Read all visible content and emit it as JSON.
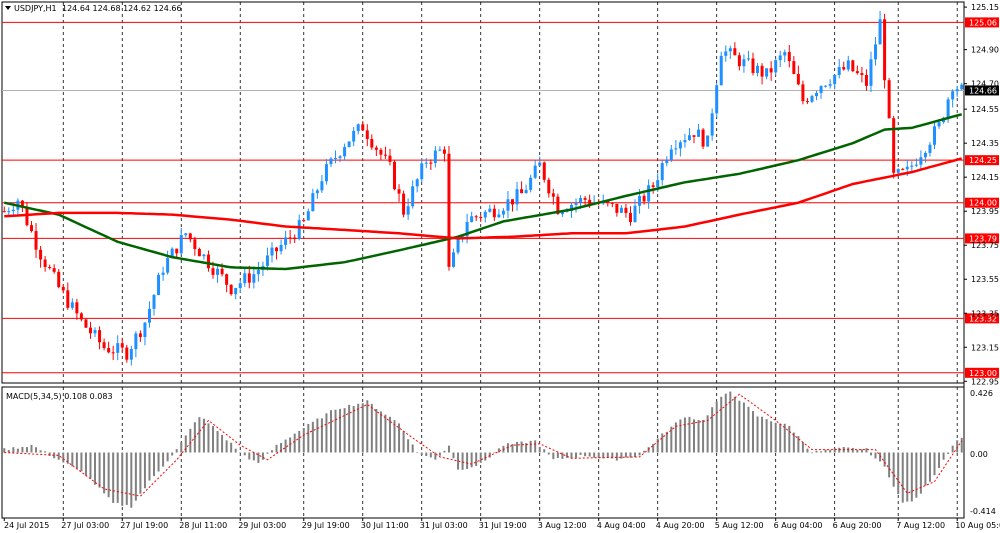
{
  "window": {
    "symbol_label": "USDJPY,H1",
    "ohlc_label": "124.64 124.68 124.62 124.66"
  },
  "macd_panel": {
    "label": "MACD(5,34,5) 0.108 0.083",
    "ticks": [
      "0.426",
      "0.00",
      "-0.414"
    ]
  },
  "colors": {
    "bull_candle": "#1e90ff",
    "bear_candle": "#ff0000",
    "ma_fast": "#006400",
    "ma_slow": "#ff0000",
    "level_line": "#ff0000",
    "macd_hist": "#808080",
    "macd_signal": "#ff0000"
  },
  "chart_data": [
    {
      "type": "candlestick",
      "series_label": "USDJPY,H1",
      "x_tick_labels": [
        "24 Jul 2015",
        "27 Jul 03:00",
        "27 Jul 19:00",
        "28 Jul 11:00",
        "29 Jul 03:00",
        "29 Jul 19:00",
        "30 Jul 11:00",
        "31 Jul 03:00",
        "31 Jul 19:00",
        "3 Aug 12:00",
        "4 Aug 04:00",
        "4 Aug 20:00",
        "5 Aug 12:00",
        "6 Aug 04:00",
        "6 Aug 20:00",
        "7 Aug 12:00",
        "10 Aug 05:00"
      ],
      "y_tick_labels": [
        "125.15",
        "124.90",
        "124.70",
        "124.55",
        "124.35",
        "124.15",
        "123.95",
        "123.75",
        "123.55",
        "123.35",
        "123.15",
        "122.95"
      ],
      "ylim": [
        122.94,
        125.18
      ],
      "grid": true,
      "current_price": 124.66,
      "horizontal_levels": [
        125.06,
        124.25,
        124.0,
        123.79,
        123.32,
        123.0
      ],
      "anchors": [
        {
          "index": 0,
          "price": 123.95
        },
        {
          "index": 3,
          "price": 124.02
        },
        {
          "index": 8,
          "price": 123.7
        },
        {
          "index": 12,
          "price": 123.5
        },
        {
          "index": 17,
          "price": 123.3
        },
        {
          "index": 22,
          "price": 123.15
        },
        {
          "index": 27,
          "price": 123.12
        },
        {
          "index": 31,
          "price": 123.3
        },
        {
          "index": 35,
          "price": 123.62
        },
        {
          "index": 40,
          "price": 123.82
        },
        {
          "index": 45,
          "price": 123.65
        },
        {
          "index": 50,
          "price": 123.5
        },
        {
          "index": 55,
          "price": 123.58
        },
        {
          "index": 60,
          "price": 123.72
        },
        {
          "index": 66,
          "price": 123.88
        },
        {
          "index": 70,
          "price": 124.15
        },
        {
          "index": 75,
          "price": 124.35
        },
        {
          "index": 79,
          "price": 124.45
        },
        {
          "index": 85,
          "price": 124.2
        },
        {
          "index": 88,
          "price": 123.95
        },
        {
          "index": 93,
          "price": 124.25
        },
        {
          "index": 97,
          "price": 124.32
        },
        {
          "index": 98,
          "price": 123.6
        },
        {
          "index": 102,
          "price": 123.9
        },
        {
          "index": 108,
          "price": 123.96
        },
        {
          "index": 114,
          "price": 124.05
        },
        {
          "index": 118,
          "price": 124.22
        },
        {
          "index": 122,
          "price": 123.97
        },
        {
          "index": 128,
          "price": 124.02
        },
        {
          "index": 133,
          "price": 123.98
        },
        {
          "index": 138,
          "price": 123.93
        },
        {
          "index": 143,
          "price": 124.1
        },
        {
          "index": 147,
          "price": 124.35
        },
        {
          "index": 152,
          "price": 124.42
        },
        {
          "index": 155,
          "price": 124.35
        },
        {
          "index": 156,
          "price": 124.55
        },
        {
          "index": 158,
          "price": 124.9
        },
        {
          "index": 163,
          "price": 124.82
        },
        {
          "index": 168,
          "price": 124.75
        },
        {
          "index": 172,
          "price": 124.88
        },
        {
          "index": 176,
          "price": 124.6
        },
        {
          "index": 180,
          "price": 124.7
        },
        {
          "index": 186,
          "price": 124.8
        },
        {
          "index": 190,
          "price": 124.7
        },
        {
          "index": 193,
          "price": 125.06
        },
        {
          "index": 196,
          "price": 124.15
        },
        {
          "index": 199,
          "price": 124.18
        },
        {
          "index": 202,
          "price": 124.3
        },
        {
          "index": 206,
          "price": 124.45
        },
        {
          "index": 209,
          "price": 124.7
        },
        {
          "index": 211,
          "price": 124.66
        }
      ],
      "moving_averages": [
        {
          "color_key": "ma_fast",
          "points": [
            {
              "index": 0,
              "price": 124.0
            },
            {
              "index": 12,
              "price": 123.93
            },
            {
              "index": 25,
              "price": 123.77
            },
            {
              "index": 37,
              "price": 123.68
            },
            {
              "index": 50,
              "price": 123.62
            },
            {
              "index": 62,
              "price": 123.61
            },
            {
              "index": 75,
              "price": 123.65
            },
            {
              "index": 87,
              "price": 123.72
            },
            {
              "index": 100,
              "price": 123.8
            },
            {
              "index": 110,
              "price": 123.89
            },
            {
              "index": 125,
              "price": 123.96
            },
            {
              "index": 137,
              "price": 124.04
            },
            {
              "index": 150,
              "price": 124.12
            },
            {
              "index": 162,
              "price": 124.17
            },
            {
              "index": 175,
              "price": 124.25
            },
            {
              "index": 187,
              "price": 124.35
            },
            {
              "index": 194,
              "price": 124.43
            },
            {
              "index": 200,
              "price": 124.44
            },
            {
              "index": 211,
              "price": 124.52
            }
          ]
        },
        {
          "color_key": "ma_slow",
          "points": [
            {
              "index": 0,
              "price": 123.92
            },
            {
              "index": 12,
              "price": 123.94
            },
            {
              "index": 25,
              "price": 123.94
            },
            {
              "index": 37,
              "price": 123.93
            },
            {
              "index": 50,
              "price": 123.9
            },
            {
              "index": 62,
              "price": 123.86
            },
            {
              "index": 75,
              "price": 123.84
            },
            {
              "index": 87,
              "price": 123.82
            },
            {
              "index": 100,
              "price": 123.79
            },
            {
              "index": 112,
              "price": 123.8
            },
            {
              "index": 125,
              "price": 123.82
            },
            {
              "index": 137,
              "price": 123.82
            },
            {
              "index": 150,
              "price": 123.86
            },
            {
              "index": 162,
              "price": 123.93
            },
            {
              "index": 175,
              "price": 124.0
            },
            {
              "index": 187,
              "price": 124.11
            },
            {
              "index": 200,
              "price": 124.18
            },
            {
              "index": 211,
              "price": 124.26
            }
          ]
        }
      ]
    },
    {
      "type": "bar",
      "series_label": "MACD(5,34,5)",
      "macd_value": 0.108,
      "signal_value": 0.083,
      "ylim": [
        -0.45,
        0.45
      ],
      "reference_ticks": [
        0.426,
        0.0,
        -0.414
      ],
      "anchors": [
        {
          "index": 0,
          "value": 0.02
        },
        {
          "index": 6,
          "value": 0.05
        },
        {
          "index": 12,
          "value": -0.05
        },
        {
          "index": 18,
          "value": -0.15
        },
        {
          "index": 24,
          "value": -0.35
        },
        {
          "index": 28,
          "value": -0.37
        },
        {
          "index": 32,
          "value": -0.2
        },
        {
          "index": 38,
          "value": 0.02
        },
        {
          "index": 43,
          "value": 0.25
        },
        {
          "index": 47,
          "value": 0.15
        },
        {
          "index": 52,
          "value": 0.0
        },
        {
          "index": 56,
          "value": -0.08
        },
        {
          "index": 60,
          "value": 0.05
        },
        {
          "index": 65,
          "value": 0.15
        },
        {
          "index": 73,
          "value": 0.3
        },
        {
          "index": 80,
          "value": 0.35
        },
        {
          "index": 87,
          "value": 0.2
        },
        {
          "index": 91,
          "value": 0.0
        },
        {
          "index": 95,
          "value": -0.05
        },
        {
          "index": 98,
          "value": 0.05
        },
        {
          "index": 100,
          "value": -0.12
        },
        {
          "index": 105,
          "value": -0.08
        },
        {
          "index": 110,
          "value": 0.05
        },
        {
          "index": 117,
          "value": 0.08
        },
        {
          "index": 121,
          "value": -0.05
        },
        {
          "index": 128,
          "value": -0.02
        },
        {
          "index": 134,
          "value": -0.05
        },
        {
          "index": 140,
          "value": -0.02
        },
        {
          "index": 146,
          "value": 0.15
        },
        {
          "index": 150,
          "value": 0.25
        },
        {
          "index": 154,
          "value": 0.22
        },
        {
          "index": 157,
          "value": 0.35
        },
        {
          "index": 160,
          "value": 0.42
        },
        {
          "index": 166,
          "value": 0.25
        },
        {
          "index": 173,
          "value": 0.18
        },
        {
          "index": 178,
          "value": 0.0
        },
        {
          "index": 185,
          "value": 0.03
        },
        {
          "index": 190,
          "value": 0.02
        },
        {
          "index": 194,
          "value": -0.1
        },
        {
          "index": 198,
          "value": -0.35
        },
        {
          "index": 201,
          "value": -0.32
        },
        {
          "index": 205,
          "value": -0.15
        },
        {
          "index": 209,
          "value": 0.05
        },
        {
          "index": 211,
          "value": 0.11
        }
      ],
      "signal_anchors": [
        {
          "index": 0,
          "value": 0.0
        },
        {
          "index": 12,
          "value": -0.02
        },
        {
          "index": 22,
          "value": -0.25
        },
        {
          "index": 30,
          "value": -0.3
        },
        {
          "index": 38,
          "value": -0.05
        },
        {
          "index": 45,
          "value": 0.22
        },
        {
          "index": 52,
          "value": 0.05
        },
        {
          "index": 58,
          "value": -0.05
        },
        {
          "index": 66,
          "value": 0.12
        },
        {
          "index": 80,
          "value": 0.33
        },
        {
          "index": 90,
          "value": 0.1
        },
        {
          "index": 96,
          "value": -0.03
        },
        {
          "index": 103,
          "value": -0.08
        },
        {
          "index": 112,
          "value": 0.05
        },
        {
          "index": 118,
          "value": 0.06
        },
        {
          "index": 125,
          "value": -0.04
        },
        {
          "index": 140,
          "value": -0.03
        },
        {
          "index": 148,
          "value": 0.18
        },
        {
          "index": 155,
          "value": 0.22
        },
        {
          "index": 162,
          "value": 0.4
        },
        {
          "index": 170,
          "value": 0.22
        },
        {
          "index": 178,
          "value": 0.02
        },
        {
          "index": 192,
          "value": 0.02
        },
        {
          "index": 199,
          "value": -0.28
        },
        {
          "index": 205,
          "value": -0.2
        },
        {
          "index": 211,
          "value": 0.08
        }
      ]
    }
  ]
}
